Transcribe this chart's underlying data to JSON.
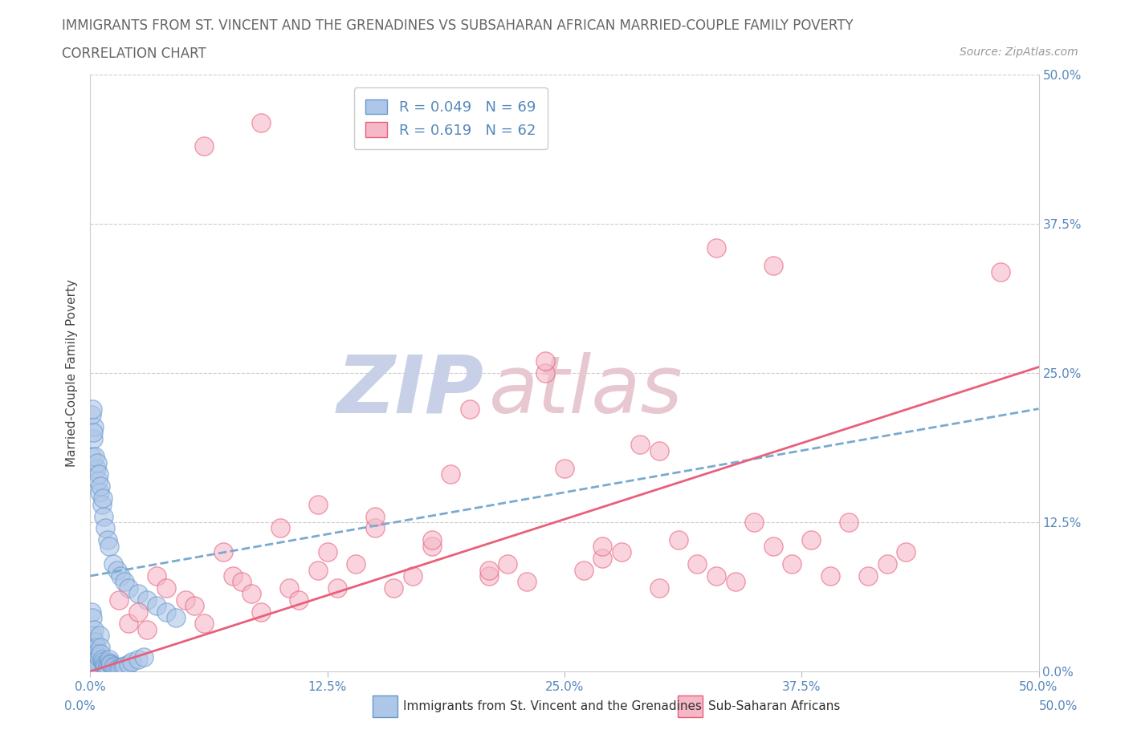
{
  "title_line1": "IMMIGRANTS FROM ST. VINCENT AND THE GRENADINES VS SUBSAHARAN AFRICAN MARRIED-COUPLE FAMILY POVERTY",
  "title_line2": "CORRELATION CHART",
  "source": "Source: ZipAtlas.com",
  "ylabel": "Married-Couple Family Poverty",
  "legend_blue_R": "R = 0.049",
  "legend_blue_N": "N = 69",
  "legend_pink_R": "R = 0.619",
  "legend_pink_N": "N = 62",
  "legend_blue_label": "Immigrants from St. Vincent and the Grenadines",
  "legend_pink_label": "Sub-Saharan Africans",
  "blue_color": "#aec6e8",
  "pink_color": "#f5b8c8",
  "blue_edge_color": "#6699cc",
  "pink_edge_color": "#e8607a",
  "blue_line_color": "#7aaad0",
  "pink_line_color": "#e8607a",
  "title_color": "#666666",
  "axis_label_color": "#5588bb",
  "watermark_color_zip": "#c8d0e8",
  "watermark_color_atlas": "#e8c8d0",
  "background_color": "#ffffff",
  "blue_scatter_x": [
    0.05,
    0.1,
    0.12,
    0.15,
    0.18,
    0.2,
    0.22,
    0.25,
    0.28,
    0.3,
    0.32,
    0.35,
    0.4,
    0.42,
    0.45,
    0.5,
    0.52,
    0.55,
    0.6,
    0.65,
    0.7,
    0.75,
    0.8,
    0.85,
    0.9,
    0.95,
    1.0,
    1.05,
    1.1,
    1.2,
    1.3,
    1.4,
    1.5,
    1.6,
    1.7,
    1.8,
    2.0,
    2.2,
    2.5,
    2.8,
    0.08,
    0.15,
    0.2,
    0.3,
    0.4,
    0.5,
    0.6,
    0.7,
    0.8,
    0.9,
    1.0,
    1.2,
    1.4,
    1.6,
    1.8,
    2.0,
    2.5,
    3.0,
    3.5,
    4.0,
    0.05,
    0.1,
    0.15,
    0.25,
    0.35,
    0.45,
    0.55,
    0.65,
    4.5
  ],
  "blue_scatter_y": [
    5.0,
    3.0,
    4.5,
    2.0,
    1.5,
    3.5,
    2.5,
    1.0,
    0.5,
    2.0,
    1.5,
    1.0,
    0.8,
    0.5,
    1.2,
    3.0,
    2.0,
    1.5,
    1.0,
    0.8,
    0.6,
    0.5,
    0.4,
    0.3,
    0.5,
    0.8,
    1.0,
    0.7,
    0.6,
    0.5,
    0.4,
    0.3,
    0.2,
    0.3,
    0.4,
    0.5,
    0.6,
    0.8,
    1.0,
    1.2,
    18.0,
    19.5,
    20.5,
    17.0,
    16.0,
    15.0,
    14.0,
    13.0,
    12.0,
    11.0,
    10.5,
    9.0,
    8.5,
    8.0,
    7.5,
    7.0,
    6.5,
    6.0,
    5.5,
    5.0,
    21.5,
    22.0,
    20.0,
    18.0,
    17.5,
    16.5,
    15.5,
    14.5,
    4.5
  ],
  "pink_scatter_x": [
    1.5,
    2.0,
    2.5,
    3.0,
    3.5,
    4.0,
    5.0,
    5.5,
    6.0,
    7.0,
    7.5,
    8.0,
    8.5,
    9.0,
    10.0,
    10.5,
    11.0,
    12.0,
    12.5,
    13.0,
    14.0,
    15.0,
    16.0,
    17.0,
    18.0,
    19.0,
    20.0,
    21.0,
    22.0,
    23.0,
    24.0,
    25.0,
    26.0,
    27.0,
    28.0,
    29.0,
    30.0,
    31.0,
    32.0,
    33.0,
    34.0,
    35.0,
    36.0,
    37.0,
    38.0,
    39.0,
    40.0,
    41.0,
    42.0,
    43.0,
    6.0,
    9.0,
    12.0,
    15.0,
    18.0,
    21.0,
    24.0,
    27.0,
    30.0,
    33.0,
    36.0,
    48.0
  ],
  "pink_scatter_y": [
    6.0,
    4.0,
    5.0,
    3.5,
    8.0,
    7.0,
    6.0,
    5.5,
    4.0,
    10.0,
    8.0,
    7.5,
    6.5,
    5.0,
    12.0,
    7.0,
    6.0,
    8.5,
    10.0,
    7.0,
    9.0,
    12.0,
    7.0,
    8.0,
    10.5,
    16.5,
    22.0,
    8.0,
    9.0,
    7.5,
    25.0,
    17.0,
    8.5,
    9.5,
    10.0,
    19.0,
    7.0,
    11.0,
    9.0,
    8.0,
    7.5,
    12.5,
    10.5,
    9.0,
    11.0,
    8.0,
    12.5,
    8.0,
    9.0,
    10.0,
    44.0,
    46.0,
    14.0,
    13.0,
    11.0,
    8.5,
    26.0,
    10.5,
    18.5,
    35.5,
    34.0,
    33.5
  ],
  "xlim": [
    0,
    50
  ],
  "ylim": [
    0,
    50
  ],
  "blue_trend_start_x": 0,
  "blue_trend_start_y": 8.0,
  "blue_trend_end_x": 50,
  "blue_trend_end_y": 22.0,
  "pink_trend_start_x": 0,
  "pink_trend_start_y": 0.0,
  "pink_trend_end_x": 50,
  "pink_trend_end_y": 25.5,
  "x_ticks": [
    0,
    12.5,
    25.0,
    37.5,
    50.0
  ],
  "y_ticks_right": [
    0,
    12.5,
    25.0,
    37.5,
    50.0
  ]
}
